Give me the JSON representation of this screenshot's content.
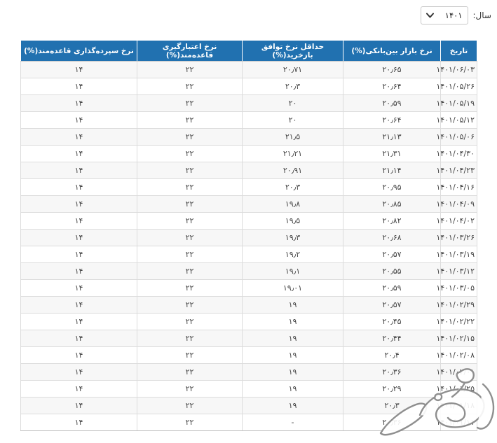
{
  "year_selector": {
    "label": "سال:",
    "value": "۱۴۰۱"
  },
  "table": {
    "headers": [
      "تاریخ",
      "نرخ بازار بین‌بانکی(%)",
      "حداقل نرخ توافق بازخرید(%)",
      "نرخ اعتبارگیری قاعده‌مند(%)",
      "نرخ سپرده‌گذاری قاعده‌مند(%)"
    ],
    "column_keys": [
      "date",
      "interbank-rate",
      "min-repo-rate",
      "regulated-credit-rate",
      "regulated-deposit-rate"
    ],
    "rows": [
      [
        "۱۴۰۱/۰۶/۰۳",
        "۲۰٫۶۵",
        "۲۰٫۷۱",
        "۲۲",
        "۱۴"
      ],
      [
        "۱۴۰۱/۰۵/۲۶",
        "۲۰٫۶۴",
        "۲۰٫۳",
        "۲۲",
        "۱۴"
      ],
      [
        "۱۴۰۱/۰۵/۱۹",
        "۲۰٫۵۹",
        "۲۰",
        "۲۲",
        "۱۴"
      ],
      [
        "۱۴۰۱/۰۵/۱۲",
        "۲۰٫۶۴",
        "۲۰",
        "۲۲",
        "۱۴"
      ],
      [
        "۱۴۰۱/۰۵/۰۶",
        "۲۱٫۱۳",
        "۲۱٫۵",
        "۲۲",
        "۱۴"
      ],
      [
        "۱۴۰۱/۰۴/۳۰",
        "۲۱٫۳۱",
        "۲۱٫۲۱",
        "۲۲",
        "۱۴"
      ],
      [
        "۱۴۰۱/۰۴/۲۳",
        "۲۱٫۱۴",
        "۲۰٫۹۱",
        "۲۲",
        "۱۴"
      ],
      [
        "۱۴۰۱/۰۴/۱۶",
        "۲۰٫۹۵",
        "۲۰٫۳",
        "۲۲",
        "۱۴"
      ],
      [
        "۱۴۰۱/۰۴/۰۹",
        "۲۰٫۸۵",
        "۱۹٫۸",
        "۲۲",
        "۱۴"
      ],
      [
        "۱۴۰۱/۰۴/۰۲",
        "۲۰٫۸۲",
        "۱۹٫۵",
        "۲۲",
        "۱۴"
      ],
      [
        "۱۴۰۱/۰۳/۲۶",
        "۲۰٫۶۸",
        "۱۹٫۳",
        "۲۲",
        "۱۴"
      ],
      [
        "۱۴۰۱/۰۳/۱۹",
        "۲۰٫۵۷",
        "۱۹٫۲",
        "۲۲",
        "۱۴"
      ],
      [
        "۱۴۰۱/۰۳/۱۲",
        "۲۰٫۵۵",
        "۱۹٫۱",
        "۲۲",
        "۱۴"
      ],
      [
        "۱۴۰۱/۰۳/۰۵",
        "۲۰٫۵۹",
        "۱۹٫۰۱",
        "۲۲",
        "۱۴"
      ],
      [
        "۱۴۰۱/۰۲/۲۹",
        "۲۰٫۵۷",
        "۱۹",
        "۲۲",
        "۱۴"
      ],
      [
        "۱۴۰۱/۰۲/۲۲",
        "۲۰٫۴۵",
        "۱۹",
        "۲۲",
        "۱۴"
      ],
      [
        "۱۴۰۱/۰۲/۱۵",
        "۲۰٫۴۴",
        "۱۹",
        "۲۲",
        "۱۴"
      ],
      [
        "۱۴۰۱/۰۲/۰۸",
        "۲۰٫۴",
        "۱۹",
        "۲۲",
        "۱۴"
      ],
      [
        "۱۴۰۱/۰۲/۰۱",
        "۲۰٫۳۶",
        "۱۹",
        "۲۲",
        "۱۴"
      ],
      [
        "۱۴۰۱/۰۱/۲۵",
        "۲۰٫۲۹",
        "۱۹",
        "۲۲",
        "۱۴"
      ],
      [
        "۱۴۰۱/۰۱/۱۸",
        "۲۰٫۳",
        "۱۹",
        "۲۲",
        "۱۴"
      ],
      [
        "۱۴۰۱/۰۱/۱۱",
        "۲۰٫۳۶",
        "-",
        "۲۲",
        "۱۴"
      ]
    ]
  },
  "colors": {
    "header_bg": "#2171b0",
    "row_alt_bg": "#f7f7f7",
    "border": "#c9c9c9"
  },
  "icons": {
    "chevron_down": "chevron-down-icon",
    "watermark": "calligraphy-watermark-logo"
  }
}
